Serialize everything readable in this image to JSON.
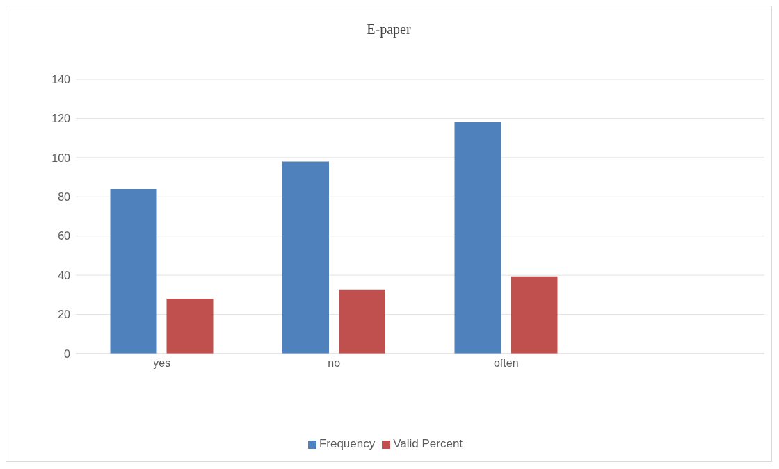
{
  "chart_data": {
    "type": "bar",
    "title": "E-paper",
    "categories": [
      "yes",
      "no",
      "often",
      null
    ],
    "series": [
      {
        "name": "Frequency",
        "color": "#4f81bd",
        "values": [
          84,
          98,
          118,
          null
        ]
      },
      {
        "name": "Valid Percent",
        "color": "#c0504d",
        "values": [
          28,
          32.7,
          39.4,
          null
        ]
      }
    ],
    "ylim": [
      0,
      140
    ],
    "yticks": [
      0,
      20,
      40,
      60,
      80,
      100,
      120,
      140
    ],
    "grid": "y",
    "legend": "bottom"
  }
}
